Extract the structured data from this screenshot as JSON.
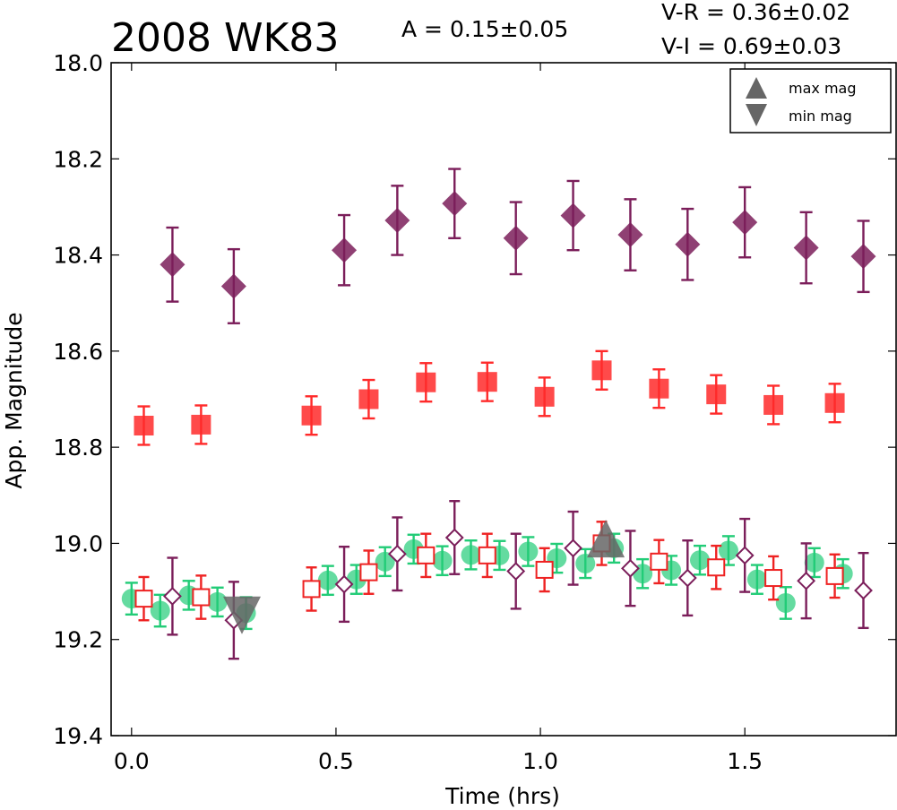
{
  "title": "2008 WK83",
  "amplitude": "A  = 0.15±0.05",
  "color_vr": "V-R = 0.36±0.02",
  "color_vi": "V-I  = 0.69±0.03",
  "chart_data": {
    "type": "scatter",
    "xlabel": "Time (hrs)",
    "ylabel": "App. Magnitude",
    "xlim": [
      -0.05,
      1.87
    ],
    "ylim": [
      19.4,
      18.0
    ],
    "y_inverted": true,
    "x_ticks": [
      "0.0",
      "0.5",
      "1.0",
      "1.5"
    ],
    "x_tick_values": [
      0.0,
      0.5,
      1.0,
      1.5
    ],
    "y_ticks": [
      "18.0",
      "18.2",
      "18.4",
      "18.6",
      "18.8",
      "19.0",
      "19.2",
      "19.4"
    ],
    "y_tick_values": [
      18.0,
      18.2,
      18.4,
      18.6,
      18.8,
      19.0,
      19.2,
      19.4
    ],
    "legend": {
      "position": "top-right",
      "entries": [
        {
          "label": "max mag",
          "marker": "triangle-up",
          "color": "#666666"
        },
        {
          "label": "min mag",
          "marker": "triangle-down",
          "color": "#666666"
        }
      ]
    },
    "series": [
      {
        "marker": "diamond",
        "filled": true,
        "color": "#7b1e5a",
        "alpha": 0.85,
        "size": 14,
        "x": [
          0.1,
          0.25,
          0.52,
          0.65,
          0.79,
          0.94,
          1.08,
          1.22,
          1.36,
          1.5,
          1.65,
          1.79
        ],
        "y": [
          18.42,
          18.465,
          18.39,
          18.328,
          18.293,
          18.365,
          18.318,
          18.358,
          18.378,
          18.332,
          18.385,
          18.403
        ],
        "err": [
          0.077,
          0.077,
          0.073,
          0.072,
          0.072,
          0.075,
          0.072,
          0.074,
          0.074,
          0.073,
          0.074,
          0.074
        ]
      },
      {
        "marker": "square",
        "filled": true,
        "color": "#ff2a2a",
        "alpha": 0.85,
        "size": 11,
        "x": [
          0.03,
          0.17,
          0.44,
          0.58,
          0.72,
          0.87,
          1.01,
          1.15,
          1.29,
          1.43,
          1.57,
          1.72
        ],
        "y": [
          18.755,
          18.753,
          18.734,
          18.7,
          18.665,
          18.664,
          18.695,
          18.64,
          18.678,
          18.69,
          18.712,
          18.708
        ],
        "err": [
          0.04,
          0.04,
          0.04,
          0.04,
          0.04,
          0.04,
          0.04,
          0.04,
          0.04,
          0.04,
          0.04,
          0.04
        ]
      },
      {
        "marker": "circle",
        "filled": true,
        "color": "#22cc77",
        "alpha": 0.7,
        "size": 11,
        "x": [
          0.0,
          0.07,
          0.14,
          0.21,
          0.28,
          0.48,
          0.55,
          0.62,
          0.69,
          0.76,
          0.83,
          0.9,
          0.97,
          1.04,
          1.11,
          1.18,
          1.25,
          1.32,
          1.39,
          1.46,
          1.53,
          1.6,
          1.67,
          1.74
        ],
        "y": [
          19.115,
          19.14,
          19.108,
          19.122,
          19.145,
          19.077,
          19.075,
          19.038,
          19.012,
          19.036,
          19.024,
          19.025,
          19.017,
          19.031,
          19.042,
          19.01,
          19.063,
          19.056,
          19.035,
          19.015,
          19.075,
          19.124,
          19.04,
          19.063
        ],
        "err": [
          0.033,
          0.033,
          0.03,
          0.03,
          0.033,
          0.03,
          0.03,
          0.03,
          0.03,
          0.03,
          0.03,
          0.03,
          0.03,
          0.03,
          0.03,
          0.03,
          0.03,
          0.03,
          0.03,
          0.03,
          0.03,
          0.033,
          0.03,
          0.03
        ]
      },
      {
        "marker": "square",
        "filled": false,
        "color": "#ee2222",
        "size": 9,
        "x": [
          0.03,
          0.17,
          0.44,
          0.58,
          0.72,
          0.87,
          1.01,
          1.15,
          1.29,
          1.43,
          1.57,
          1.72
        ],
        "y": [
          19.115,
          19.112,
          19.095,
          19.06,
          19.025,
          19.025,
          19.055,
          19.0,
          19.038,
          19.05,
          19.072,
          19.068
        ],
        "err": [
          0.045,
          0.045,
          0.045,
          0.045,
          0.045,
          0.045,
          0.045,
          0.045,
          0.045,
          0.045,
          0.045,
          0.045
        ]
      },
      {
        "marker": "diamond",
        "filled": false,
        "color": "#7b1e5a",
        "size": 9,
        "x": [
          0.1,
          0.25,
          0.52,
          0.65,
          0.79,
          0.94,
          1.08,
          1.22,
          1.36,
          1.5,
          1.65,
          1.79
        ],
        "y": [
          19.11,
          19.16,
          19.085,
          19.022,
          18.988,
          19.058,
          19.01,
          19.052,
          19.072,
          19.025,
          19.078,
          19.098
        ],
        "err": [
          0.08,
          0.08,
          0.078,
          0.076,
          0.076,
          0.078,
          0.076,
          0.078,
          0.078,
          0.076,
          0.078,
          0.078
        ]
      }
    ],
    "extrema": [
      {
        "label": "min mag",
        "marker": "triangle-down",
        "x": 0.27,
        "y": 19.14,
        "color": "#666666"
      },
      {
        "label": "max mag",
        "marker": "triangle-up",
        "x": 1.16,
        "y": 19.0,
        "color": "#666666"
      }
    ]
  }
}
